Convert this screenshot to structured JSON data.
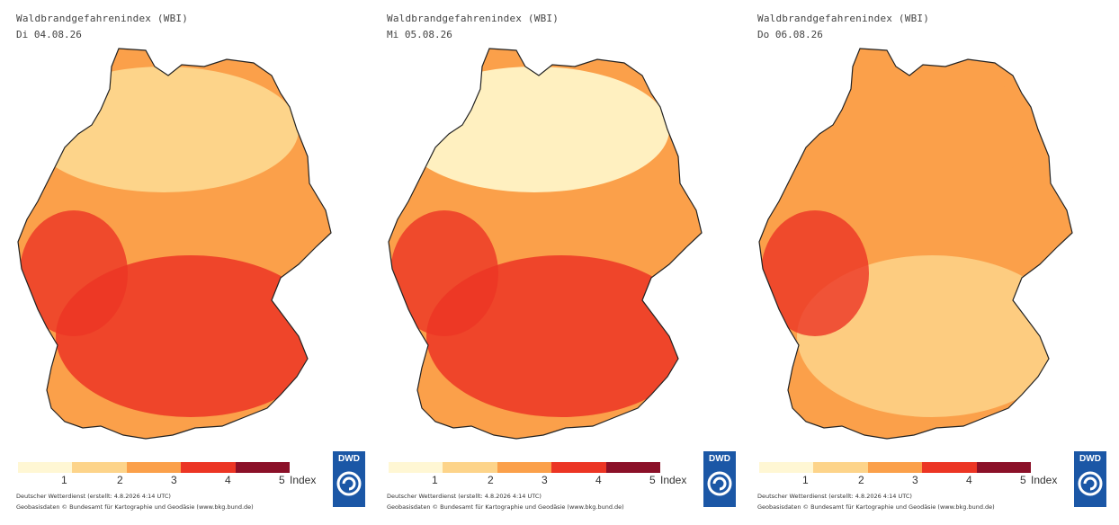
{
  "legend": {
    "colors": [
      "#fff7d4",
      "#fdd48a",
      "#fba04a",
      "#ec3524",
      "#8b1028"
    ],
    "labels": [
      "1",
      "2",
      "3",
      "4",
      "5"
    ],
    "unit": "Index"
  },
  "panels": [
    {
      "title": "Waldbrandgefahrenindex (WBI)",
      "date": "Di 04.08.26",
      "source_line1": "Deutscher Wetterdienst (erstellt: 4.8.2026 4:14 UTC)",
      "source_line2": "Geobasisdaten © Bundesamt für Kartographie und Geodäsie (www.bkg.bund.de)",
      "logo_text": "DWD",
      "dominant_colors": [
        "#fba04a",
        "#ec3524"
      ],
      "north_color": "#fdd48a"
    },
    {
      "title": "Waldbrandgefahrenindex (WBI)",
      "date": "Mi 05.08.26",
      "source_line1": "Deutscher Wetterdienst (erstellt: 4.8.2026 4:14 UTC)",
      "source_line2": "Geobasisdaten © Bundesamt für Kartographie und Geodäsie (www.bkg.bund.de)",
      "logo_text": "DWD",
      "dominant_colors": [
        "#fba04a",
        "#ec3524"
      ],
      "north_color": "#fff0c0"
    },
    {
      "title": "Waldbrandgefahrenindex (WBI)",
      "date": "Do 06.08.26",
      "source_line1": "Deutscher Wetterdienst (erstellt: 4.8.2026 4:14 UTC)",
      "source_line2": "Geobasisdaten © Bundesamt für Kartographie und Geodäsie (www.bkg.bund.de)",
      "logo_text": "DWD",
      "dominant_colors": [
        "#fba04a",
        "#fdd48a"
      ],
      "north_color": "#fba04a"
    }
  ]
}
